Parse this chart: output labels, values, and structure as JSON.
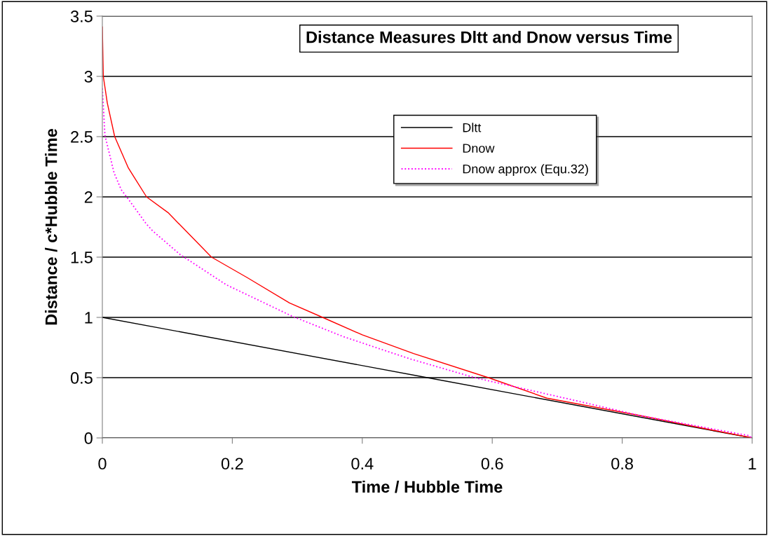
{
  "chart_data": {
    "type": "line",
    "title": "Distance Measures Dltt and Dnow versus Time",
    "xlabel": "Time / Hubble Time",
    "ylabel": "Distance / c*Hubble Time",
    "xlim": [
      0,
      1
    ],
    "xticks": [
      0,
      0.2,
      0.4,
      0.6,
      0.8,
      1
    ],
    "ylim": [
      0,
      3.5
    ],
    "yticks": [
      0,
      0.5,
      1,
      1.5,
      2,
      2.5,
      3,
      3.5
    ],
    "grid": "y",
    "legend": "top right",
    "series": [
      {
        "name": "Dltt",
        "color": "#000000",
        "line_style": "solid",
        "x": [
          0,
          0.5,
          1
        ],
        "values": [
          1,
          0.5,
          0
        ]
      },
      {
        "name": "Dnow",
        "color": "#ff0000",
        "line_style": "solid",
        "x": [
          0,
          0.001,
          0.0015,
          0.0076,
          0.019,
          0.04,
          0.068,
          0.101,
          0.168,
          0.223,
          0.288,
          0.339,
          0.4,
          0.479,
          0.594,
          0.684,
          0.827,
          0.918,
          1
        ],
        "values": [
          3.41,
          3.13,
          3.0,
          2.78,
          2.5,
          2.24,
          2.0,
          1.87,
          1.5,
          1.33,
          1.12,
          1.0,
          0.855,
          0.7,
          0.5,
          0.33,
          0.186,
          0.087,
          0
        ]
      },
      {
        "name": "Dnow approx (Equ.32)",
        "color": "#ff00ff",
        "line_style": "dotted",
        "x": [
          0,
          0.004,
          0.018,
          0.029,
          0.047,
          0.067,
          0.077,
          0.12,
          0.191,
          0.292,
          0.371,
          0.471,
          0.573,
          0.72,
          0.827,
          0.994,
          1
        ],
        "values": [
          2.9,
          2.51,
          2.2,
          2.06,
          1.93,
          1.78,
          1.72,
          1.52,
          1.27,
          1.01,
          0.84,
          0.66,
          0.5,
          0.32,
          0.186,
          0.02,
          0
        ]
      }
    ]
  }
}
